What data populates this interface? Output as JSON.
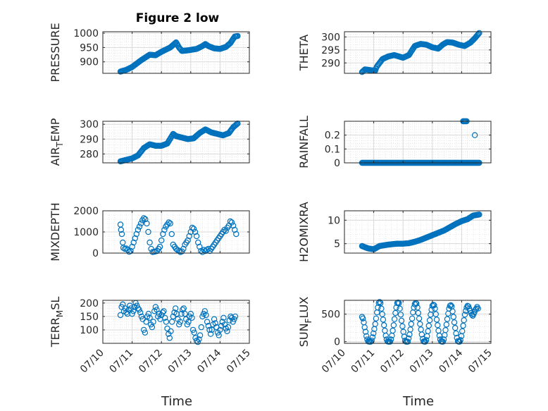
{
  "figure": {
    "title": "Figure 2 low",
    "xlabel": "Time",
    "x_tick_labels": [
      "07/10",
      "07/11",
      "07/12",
      "07/13",
      "07/14",
      "07/15"
    ],
    "marker_color": "#0072BD",
    "axes_color": "#262626",
    "grid_color": "#d9d9d9"
  },
  "chart_data": [
    {
      "type": "scatter",
      "name": "PRESSURE",
      "ylabel": "PRESSURE",
      "xlim": [
        10,
        15
      ],
      "ylim": [
        860,
        1005
      ],
      "yticks": [
        900,
        950,
        1000
      ],
      "ytick_labels": [
        "900",
        "950",
        "1000"
      ],
      "grid": true,
      "x": [],
      "y": [],
      "anchors": [
        [
          10.6,
          866
        ],
        [
          10.8,
          872
        ],
        [
          11.0,
          882
        ],
        [
          11.3,
          905
        ],
        [
          11.6,
          925
        ],
        [
          11.8,
          923
        ],
        [
          12.0,
          935
        ],
        [
          12.3,
          950
        ],
        [
          12.5,
          968
        ],
        [
          12.6,
          950
        ],
        [
          12.7,
          938
        ],
        [
          12.9,
          940
        ],
        [
          13.2,
          945
        ],
        [
          13.4,
          955
        ],
        [
          13.5,
          962
        ],
        [
          13.6,
          955
        ],
        [
          13.8,
          947
        ],
        [
          14.0,
          945
        ],
        [
          14.2,
          952
        ],
        [
          14.35,
          965
        ],
        [
          14.5,
          988
        ],
        [
          14.6,
          990
        ]
      ]
    },
    {
      "type": "scatter",
      "name": "THETA",
      "ylabel": "THETA",
      "xlim": [
        10,
        15
      ],
      "ylim": [
        286,
        302
      ],
      "yticks": [
        290,
        295,
        300
      ],
      "ytick_labels": [
        "290",
        "295",
        "300"
      ],
      "grid": true,
      "x": [],
      "y": [],
      "anchors": [
        [
          10.6,
          286.5
        ],
        [
          10.7,
          287.5
        ],
        [
          10.9,
          287.2
        ],
        [
          11.05,
          287
        ],
        [
          11.1,
          288.5
        ],
        [
          11.3,
          291.5
        ],
        [
          11.5,
          292.5
        ],
        [
          11.7,
          293
        ],
        [
          12.0,
          292
        ],
        [
          12.2,
          293
        ],
        [
          12.4,
          296.5
        ],
        [
          12.6,
          297.3
        ],
        [
          12.8,
          297
        ],
        [
          13.0,
          296
        ],
        [
          13.2,
          295.5
        ],
        [
          13.35,
          297
        ],
        [
          13.5,
          298
        ],
        [
          13.7,
          297.8
        ],
        [
          13.9,
          297
        ],
        [
          14.1,
          296.5
        ],
        [
          14.3,
          297.8
        ],
        [
          14.45,
          299.5
        ],
        [
          14.6,
          301.5
        ]
      ]
    },
    {
      "type": "scatter",
      "name": "AIR_TEMP",
      "ylabel": "AIR_TEMP",
      "xlim": [
        10,
        15
      ],
      "ylim": [
        274,
        302
      ],
      "yticks": [
        280,
        290,
        300
      ],
      "ytick_labels": [
        "280",
        "290",
        "300"
      ],
      "grid": true,
      "x": [],
      "y": [],
      "anchors": [
        [
          10.6,
          275
        ],
        [
          10.8,
          276
        ],
        [
          11.0,
          277
        ],
        [
          11.2,
          279
        ],
        [
          11.4,
          284
        ],
        [
          11.6,
          286.5
        ],
        [
          11.8,
          285.5
        ],
        [
          12.0,
          285.5
        ],
        [
          12.2,
          287
        ],
        [
          12.4,
          293.5
        ],
        [
          12.5,
          292
        ],
        [
          12.7,
          291
        ],
        [
          12.9,
          290
        ],
        [
          13.1,
          290.5
        ],
        [
          13.3,
          294
        ],
        [
          13.5,
          296.5
        ],
        [
          13.7,
          294.5
        ],
        [
          13.9,
          293.5
        ],
        [
          14.1,
          292.5
        ],
        [
          14.3,
          294
        ],
        [
          14.45,
          298
        ],
        [
          14.6,
          300.5
        ]
      ]
    },
    {
      "type": "scatter",
      "name": "RAINFALL",
      "ylabel": "RAINFALL",
      "xlim": [
        10,
        15
      ],
      "ylim": [
        0,
        0.3
      ],
      "yticks": [
        0,
        0.1,
        0.2
      ],
      "ytick_labels": [
        "0",
        "0.1",
        "0.2"
      ],
      "grid": true,
      "x": [
        14.05,
        14.08,
        14.11,
        14.14,
        14.17,
        14.45
      ],
      "y": [
        0.3,
        0.3,
        0.3,
        0.3,
        0.3,
        0.2
      ],
      "baseline": {
        "x_start": 10.6,
        "x_end": 14.6,
        "y": 0
      }
    },
    {
      "type": "scatter",
      "name": "MIXDEPTH",
      "ylabel": "MIXDEPTH",
      "xlim": [
        10,
        15
      ],
      "ylim": [
        0,
        2000
      ],
      "yticks": [
        0,
        1000,
        2000
      ],
      "ytick_labels": [
        "0",
        "1000",
        "2000"
      ],
      "grid": true,
      "x": [
        10.6,
        10.62,
        10.65,
        10.68,
        10.7,
        10.75,
        10.8,
        10.85,
        10.9,
        10.95,
        11.0,
        11.05,
        11.1,
        11.15,
        11.2,
        11.25,
        11.3,
        11.35,
        11.4,
        11.45,
        11.5,
        11.55,
        11.6,
        11.65,
        11.7,
        11.75,
        11.8,
        11.85,
        11.9,
        11.95,
        12.0,
        12.05,
        12.1,
        12.15,
        12.2,
        12.25,
        12.3,
        12.35,
        12.4,
        12.45,
        12.5,
        12.55,
        12.6,
        12.65,
        12.7,
        12.75,
        12.8,
        12.85,
        12.9,
        12.95,
        13.0,
        13.05,
        13.1,
        13.15,
        13.2,
        13.25,
        13.3,
        13.35,
        13.4,
        13.45,
        13.5,
        13.55,
        13.6,
        13.65,
        13.7,
        13.75,
        13.8,
        13.85,
        13.9,
        13.95,
        14.0,
        14.05,
        14.1,
        14.15,
        14.2,
        14.25,
        14.3,
        14.35,
        14.4,
        14.45,
        14.5,
        14.55
      ],
      "y": [
        1350,
        1100,
        900,
        500,
        250,
        200,
        220,
        150,
        60,
        100,
        300,
        500,
        700,
        900,
        1100,
        1250,
        1400,
        1550,
        1650,
        1600,
        1400,
        1000,
        500,
        200,
        50,
        60,
        80,
        100,
        200,
        300,
        600,
        900,
        1100,
        1250,
        1350,
        1450,
        1400,
        900,
        400,
        300,
        200,
        150,
        100,
        50,
        80,
        200,
        400,
        500,
        600,
        800,
        1000,
        1200,
        1150,
        1000,
        800,
        500,
        300,
        100,
        50,
        150,
        100,
        150,
        200,
        100,
        200,
        300,
        400,
        500,
        600,
        700,
        800,
        900,
        1000,
        1100,
        1050,
        1200,
        1300,
        1500,
        1450,
        1300,
        1100,
        900
      ]
    },
    {
      "type": "scatter",
      "name": "H2OMIXRA",
      "ylabel": "H2OMIXRA",
      "xlim": [
        10,
        15
      ],
      "ylim": [
        3,
        12
      ],
      "yticks": [
        5,
        10
      ],
      "ytick_labels": [
        "5",
        "10"
      ],
      "grid": true,
      "x": [],
      "y": [],
      "anchors": [
        [
          10.6,
          4.5
        ],
        [
          10.8,
          4.0
        ],
        [
          11.0,
          3.8
        ],
        [
          11.2,
          4.5
        ],
        [
          11.5,
          4.8
        ],
        [
          11.8,
          5.0
        ],
        [
          12.0,
          5.0
        ],
        [
          12.2,
          5.1
        ],
        [
          12.4,
          5.4
        ],
        [
          12.6,
          5.8
        ],
        [
          12.8,
          6.3
        ],
        [
          13.0,
          6.8
        ],
        [
          13.2,
          7.3
        ],
        [
          13.4,
          7.8
        ],
        [
          13.6,
          8.5
        ],
        [
          13.8,
          9.2
        ],
        [
          14.0,
          9.8
        ],
        [
          14.2,
          10.2
        ],
        [
          14.4,
          11.0
        ],
        [
          14.6,
          11.2
        ]
      ]
    },
    {
      "type": "scatter",
      "name": "TERR_MSL",
      "ylabel": "TERR_MSL",
      "xlim": [
        10,
        15
      ],
      "ylim": [
        50,
        210
      ],
      "yticks": [
        100,
        150,
        200
      ],
      "ytick_labels": [
        "100",
        "150",
        "200"
      ],
      "grid": true,
      "x": [
        10.6,
        10.64,
        10.68,
        10.72,
        10.76,
        10.8,
        10.84,
        10.88,
        10.92,
        10.96,
        11.0,
        11.04,
        11.08,
        11.12,
        11.16,
        11.2,
        11.24,
        11.28,
        11.32,
        11.36,
        11.4,
        11.44,
        11.48,
        11.52,
        11.56,
        11.6,
        11.64,
        11.68,
        11.72,
        11.76,
        11.8,
        11.84,
        11.88,
        11.92,
        11.96,
        12.0,
        12.04,
        12.08,
        12.12,
        12.16,
        12.2,
        12.24,
        12.28,
        12.32,
        12.36,
        12.4,
        12.44,
        12.48,
        12.52,
        12.56,
        12.6,
        12.64,
        12.68,
        12.72,
        12.76,
        12.8,
        12.84,
        12.88,
        12.92,
        12.96,
        13.0,
        13.04,
        13.08,
        13.12,
        13.16,
        13.2,
        13.24,
        13.28,
        13.32,
        13.36,
        13.4,
        13.44,
        13.48,
        13.52,
        13.56,
        13.6,
        13.64,
        13.68,
        13.72,
        13.76,
        13.8,
        13.84,
        13.88,
        13.92,
        13.96,
        14.0,
        14.04,
        14.08,
        14.12,
        14.16,
        14.2,
        14.24,
        14.28,
        14.32,
        14.36,
        14.4,
        14.44,
        14.48,
        14.52
      ],
      "y": [
        155,
        185,
        195,
        170,
        180,
        165,
        160,
        175,
        190,
        180,
        160,
        170,
        185,
        200,
        190,
        180,
        175,
        165,
        150,
        140,
        100,
        90,
        130,
        150,
        160,
        145,
        120,
        110,
        130,
        170,
        185,
        175,
        150,
        160,
        140,
        155,
        165,
        170,
        145,
        130,
        105,
        85,
        70,
        95,
        130,
        150,
        165,
        180,
        160,
        140,
        120,
        130,
        160,
        175,
        180,
        160,
        140,
        120,
        130,
        150,
        160,
        145,
        100,
        90,
        70,
        60,
        55,
        65,
        80,
        110,
        150,
        160,
        170,
        155,
        130,
        115,
        100,
        85,
        100,
        120,
        140,
        125,
        110,
        90,
        80,
        100,
        115,
        130,
        145,
        120,
        105,
        95,
        110,
        135,
        150,
        145,
        130,
        140,
        150
      ]
    },
    {
      "type": "scatter",
      "name": "SUN_FLUX",
      "ylabel": "SUN_FLUX",
      "xlim": [
        10,
        15
      ],
      "ylim": [
        -30,
        750
      ],
      "yticks": [
        0,
        500
      ],
      "ytick_labels": [
        "0",
        "500"
      ],
      "grid": true,
      "x": [
        10.6,
        10.63,
        10.66,
        10.69,
        10.72,
        10.75,
        10.78,
        10.81,
        10.84,
        10.87,
        10.9,
        10.93,
        10.96,
        10.99,
        11.02,
        11.05,
        11.08,
        11.11,
        11.14,
        11.17,
        11.2,
        11.23,
        11.26,
        11.29,
        11.32,
        11.35,
        11.38,
        11.41,
        11.44,
        11.47,
        11.5,
        11.53,
        11.56,
        11.59,
        11.62,
        11.65,
        11.68,
        11.71,
        11.74,
        11.77,
        11.8,
        11.83,
        11.86,
        11.89,
        11.92,
        11.95,
        11.98,
        12.01,
        12.04,
        12.07,
        12.1,
        12.13,
        12.16,
        12.19,
        12.22,
        12.25,
        12.28,
        12.31,
        12.34,
        12.37,
        12.4,
        12.43,
        12.46,
        12.49,
        12.52,
        12.55,
        12.58,
        12.61,
        12.64,
        12.67,
        12.7,
        12.73,
        12.76,
        12.79,
        12.82,
        12.85,
        12.88,
        12.91,
        12.94,
        12.97,
        13.0,
        13.03,
        13.06,
        13.09,
        13.12,
        13.15,
        13.18,
        13.21,
        13.24,
        13.27,
        13.3,
        13.33,
        13.36,
        13.39,
        13.42,
        13.45,
        13.48,
        13.51,
        13.54,
        13.57,
        13.6,
        13.63,
        13.66,
        13.69,
        13.72,
        13.75,
        13.78,
        13.81,
        13.84,
        13.87,
        13.9,
        13.93,
        13.96,
        13.99,
        14.02,
        14.05,
        14.08,
        14.11,
        14.14,
        14.17,
        14.2,
        14.23,
        14.26,
        14.29,
        14.32,
        14.35,
        14.38,
        14.41,
        14.44,
        14.47,
        14.5,
        14.53,
        14.56
      ],
      "y": [
        450,
        420,
        350,
        260,
        180,
        100,
        40,
        5,
        0,
        0,
        0,
        20,
        80,
        150,
        230,
        320,
        420,
        530,
        620,
        700,
        720,
        700,
        600,
        500,
        400,
        300,
        200,
        110,
        40,
        5,
        0,
        0,
        0,
        40,
        110,
        200,
        300,
        410,
        520,
        620,
        700,
        710,
        700,
        600,
        490,
        380,
        280,
        180,
        90,
        20,
        0,
        0,
        0,
        60,
        130,
        220,
        320,
        420,
        530,
        620,
        680,
        700,
        690,
        620,
        520,
        420,
        320,
        220,
        130,
        50,
        5,
        0,
        0,
        30,
        100,
        190,
        290,
        390,
        490,
        580,
        650,
        670,
        660,
        600,
        500,
        400,
        300,
        200,
        110,
        40,
        5,
        0,
        0,
        40,
        120,
        210,
        310,
        410,
        510,
        600,
        650,
        660,
        640,
        550,
        450,
        350,
        250,
        150,
        70,
        10,
        0,
        0,
        30,
        100,
        190,
        290,
        390,
        490,
        560,
        620,
        650,
        640,
        600,
        560,
        520,
        490,
        470,
        500,
        540,
        580,
        600,
        630,
        600
      ]
    }
  ]
}
